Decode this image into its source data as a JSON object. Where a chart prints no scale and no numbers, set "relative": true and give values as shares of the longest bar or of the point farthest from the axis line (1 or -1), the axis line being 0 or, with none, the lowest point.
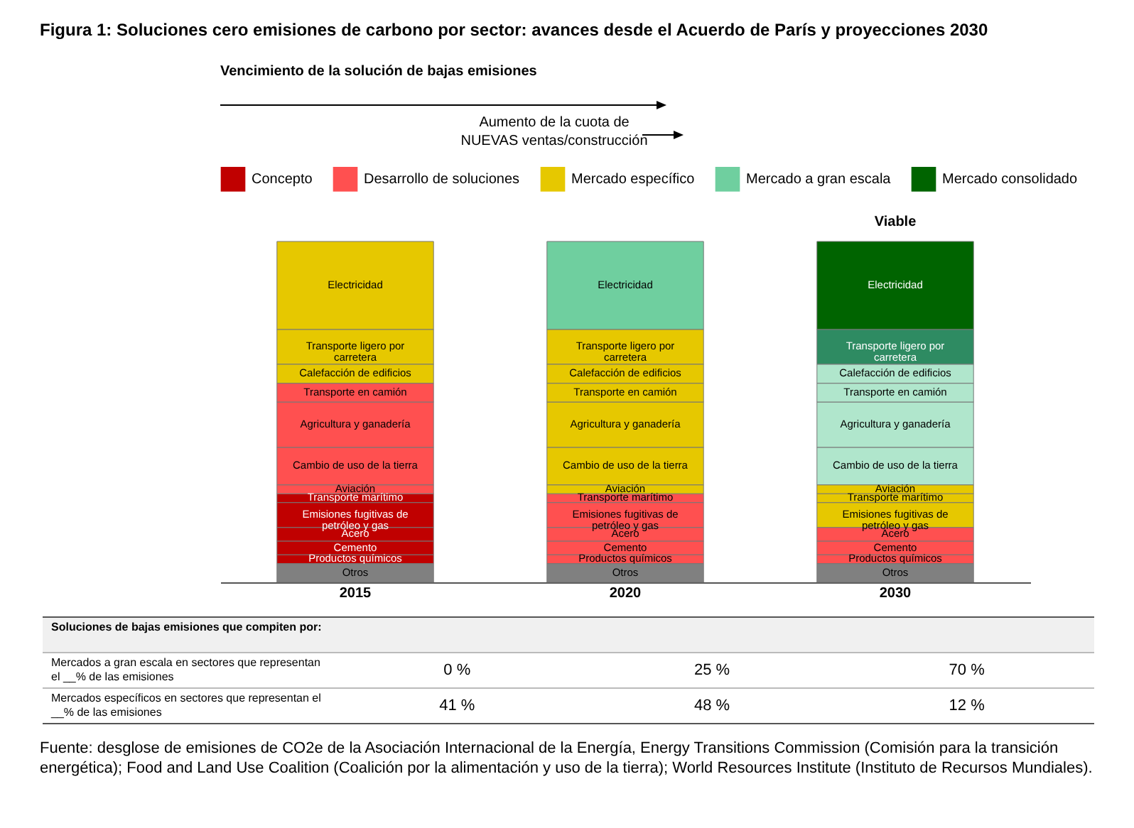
{
  "chart_data": {
    "type": "bar",
    "title": "Figura 1: Soluciones cero emisiones de carbono por sector: avances desde el Acuerdo de París y proyecciones 2030",
    "legend_title": "Vencimiento de la solución de bajas emisiones",
    "categories": [
      "2015",
      "2020",
      "2030"
    ],
    "stacked": true,
    "relative": true,
    "legend": "top",
    "series": [
      {
        "name": "Otros",
        "colors": [
          "#808080",
          "#808080",
          "#808080"
        ],
        "values": [
          0.055,
          0.055,
          0.055
        ]
      },
      {
        "name": "Productos químicos",
        "colors": [
          "#c00000",
          "#ff5050",
          "#ff5050"
        ],
        "values": [
          0.026,
          0.026,
          0.026
        ]
      },
      {
        "name": "Cemento",
        "colors": [
          "#c00000",
          "#ff5050",
          "#ff5050"
        ],
        "values": [
          0.04,
          0.04,
          0.04
        ]
      },
      {
        "name": "Acero",
        "colors": [
          "#c00000",
          "#ff5050",
          "#ff5050"
        ],
        "values": [
          0.04,
          0.04,
          0.04
        ]
      },
      {
        "name": "Emisiones fugitivas de petróleo y gas",
        "colors": [
          "#c00000",
          "#ff5050",
          "#e6c800"
        ],
        "values": [
          0.073,
          0.073,
          0.073
        ]
      },
      {
        "name": "Transporte marítimo",
        "colors": [
          "#c00000",
          "#ff5050",
          "#e6c800"
        ],
        "values": [
          0.026,
          0.026,
          0.026
        ]
      },
      {
        "name": "Aviación",
        "colors": [
          "#ff5050",
          "#e6c800",
          "#e6c800"
        ],
        "values": [
          0.026,
          0.026,
          0.026
        ]
      },
      {
        "name": "Cambio de uso de la tierra",
        "colors": [
          "#ff5050",
          "#e6c800",
          "#b0e6cc"
        ],
        "values": [
          0.11,
          0.11,
          0.11
        ]
      },
      {
        "name": "Agricultura y ganadería",
        "colors": [
          "#ff5050",
          "#e6c800",
          "#b0e6cc"
        ],
        "values": [
          0.133,
          0.133,
          0.133
        ]
      },
      {
        "name": "Transporte en camión",
        "colors": [
          "#ff5050",
          "#e6c800",
          "#b0e6cc"
        ],
        "values": [
          0.055,
          0.055,
          0.055
        ]
      },
      {
        "name": "Calefacción de edificios",
        "colors": [
          "#e6c800",
          "#e6c800",
          "#b0e6cc"
        ],
        "values": [
          0.056,
          0.056,
          0.056
        ]
      },
      {
        "name": "Transporte ligero por carretera",
        "colors": [
          "#e6c800",
          "#e6c800",
          "#2e8b62"
        ],
        "values": [
          0.102,
          0.102,
          0.102
        ]
      },
      {
        "name": "Electricidad",
        "colors": [
          "#e6c800",
          "#6fcf9f",
          "#006400"
        ],
        "values": [
          0.258,
          0.258,
          0.258
        ]
      },
      {
        "name": "Concepto",
        "color": "#c00000",
        "values": [
          null,
          null,
          null
        ]
      },
      {
        "name": "Desarrollo de soluciones",
        "color": "#ff5050",
        "values": [
          null,
          null,
          null
        ]
      },
      {
        "name": "Mercado específico",
        "color": "#e6c800",
        "values": [
          null,
          null,
          null
        ]
      },
      {
        "name": "Mercado a gran escala",
        "color": "#6fcf9f",
        "values": [
          null,
          null,
          null
        ]
      },
      {
        "name": "Mercado consolidado",
        "color": "#006400",
        "values": [
          null,
          null,
          null
        ]
      }
    ],
    "annotations": [
      "Aumento de la cuota de NUEVAS ventas/construcción",
      "Viable",
      "Soluciones de bajas emisiones que compiten por:",
      "Mercados a gran escala en sectores que representan el __% de las emisiones",
      "0 %",
      "25 %",
      "70 %",
      "Mercados específicos en sectores que representan el __% de las emisiones",
      "41 %",
      "48 %",
      "12 %",
      "Fuente: desglose de emisiones de CO2e de la Asociación Internacional de la Energía, Energy Transitions Commission (Comisión para la transición energética); Food and Land Use Coalition (Coalición por la alimentación y uso de la tierra); World Resources Institute (Instituto de Recursos Mundiales)."
    ]
  }
}
